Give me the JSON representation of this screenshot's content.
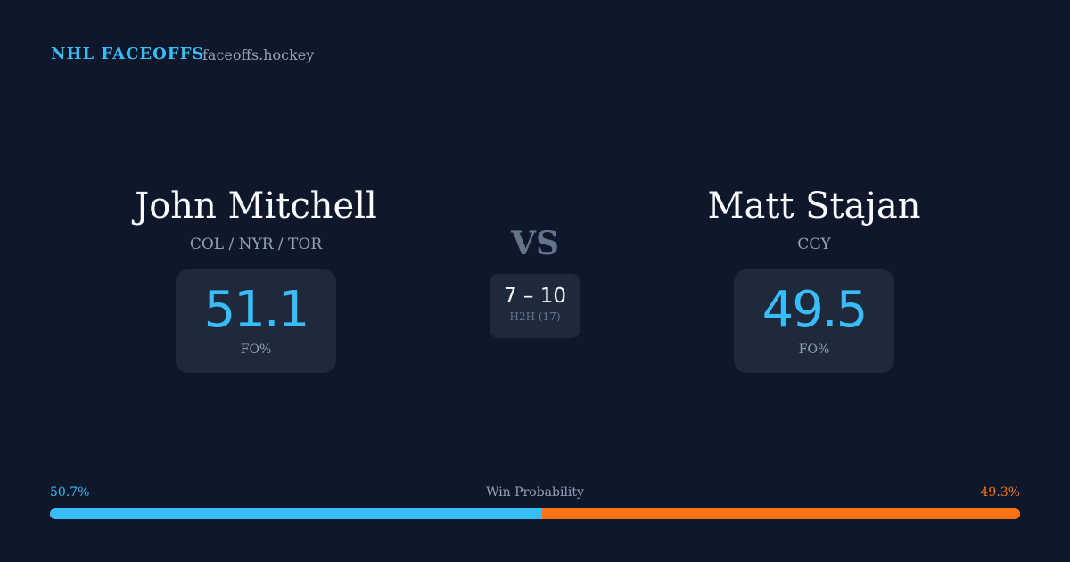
{
  "header": {
    "brand": "NHL FACEOFFS",
    "domain": "faceoffs.hockey"
  },
  "player_left": {
    "name": "John Mitchell",
    "teams": "COL / NYR / TOR",
    "fo_pct": "51.1",
    "fo_label": "FO%"
  },
  "player_right": {
    "name": "Matt Stajan",
    "teams": "CGY",
    "fo_pct": "49.5",
    "fo_label": "FO%"
  },
  "versus": {
    "label": "VS",
    "score": "7 – 10",
    "h2h_label": "H2H (17)"
  },
  "win_probability": {
    "label": "Win Probability",
    "left_pct": "50.7%",
    "right_pct": "49.3%",
    "left_value": 50.7,
    "right_value": 49.3
  },
  "colors": {
    "left": "#38bdf8",
    "right": "#f97316",
    "background": "#0f172a",
    "card": "#1e293b"
  }
}
